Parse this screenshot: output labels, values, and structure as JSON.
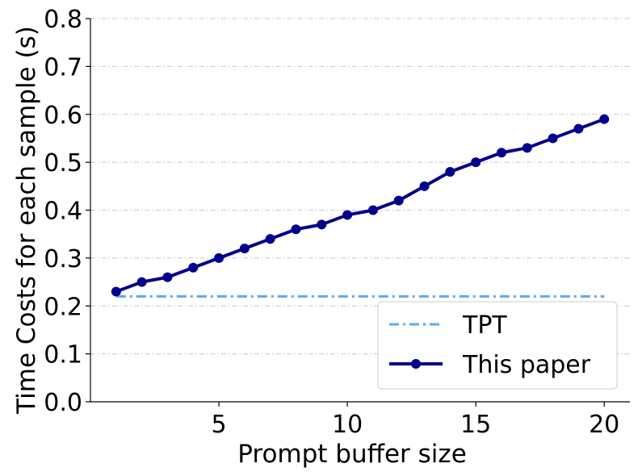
{
  "chart_data": {
    "type": "line",
    "xlabel": "Prompt buffer size",
    "ylabel": "Time Costs for each sample (s)",
    "xlim": [
      0,
      21
    ],
    "ylim": [
      0,
      0.8
    ],
    "xticks": [
      5,
      10,
      15,
      20
    ],
    "yticks": [
      0.0,
      0.1,
      0.2,
      0.3,
      0.4,
      0.5,
      0.6,
      0.7,
      0.8
    ],
    "ytick_labels": [
      "0.0",
      "0.1",
      "0.2",
      "0.3",
      "0.4",
      "0.5",
      "0.6",
      "0.7",
      "0.8"
    ],
    "grid": "horizontal dash-dot",
    "legend_position": "lower-right",
    "series": [
      {
        "name": "TPT",
        "color": "#5ea8f0",
        "style": "dash-dot",
        "x": [
          1,
          20
        ],
        "values": [
          0.22,
          0.22
        ]
      },
      {
        "name": "This paper",
        "color": "#00008b",
        "style": "solid-with-circle-markers",
        "x": [
          1,
          2,
          3,
          4,
          5,
          6,
          7,
          8,
          9,
          10,
          11,
          12,
          13,
          14,
          15,
          16,
          17,
          18,
          19,
          20
        ],
        "values": [
          0.23,
          0.25,
          0.26,
          0.28,
          0.3,
          0.32,
          0.34,
          0.36,
          0.37,
          0.39,
          0.4,
          0.42,
          0.45,
          0.48,
          0.5,
          0.52,
          0.53,
          0.55,
          0.57,
          0.59
        ]
      }
    ]
  }
}
